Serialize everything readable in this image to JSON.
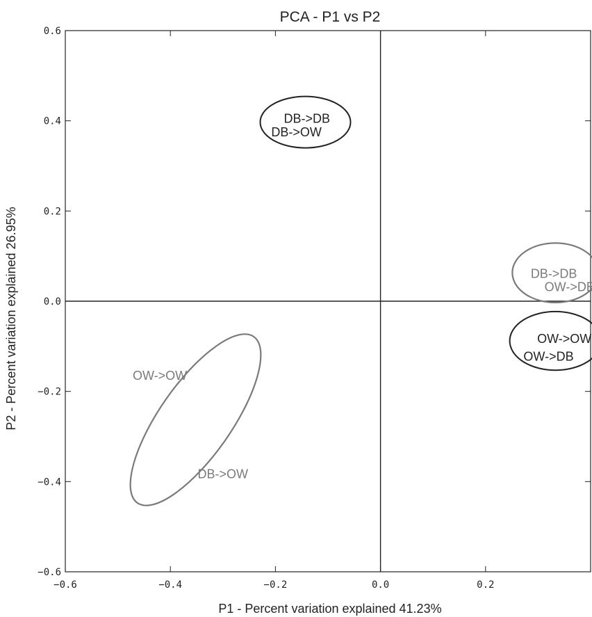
{
  "chart_data": {
    "type": "scatter",
    "title": "PCA - P1 vs P2",
    "xlabel": "P1 - Percent variation explained 41.23%",
    "ylabel": "P2 - Percent variation explained 26.95%",
    "xlim": [
      -0.6,
      0.4
    ],
    "ylim": [
      -0.6,
      0.6
    ],
    "xticks": [
      -0.6,
      -0.4,
      -0.2,
      0.0,
      0.2
    ],
    "xtick_labels": [
      "−0.6",
      "−0.4",
      "−0.2",
      "0.0",
      "0.2"
    ],
    "yticks": [
      0.6,
      0.4,
      0.2,
      0.0,
      -0.2,
      -0.4,
      -0.6
    ],
    "ytick_labels": [
      "0.6",
      "0.4",
      "0.2",
      "0.0",
      "−0.2",
      "−0.4",
      "−0.6"
    ],
    "grid": false,
    "zero_lines": true,
    "colors": {
      "dark": "#222222",
      "gray": "#7a7a7a"
    },
    "points": [
      {
        "label": "DB->DB",
        "x": -0.14,
        "y": 0.405,
        "color": "dark"
      },
      {
        "label": "DB->OW",
        "x": -0.16,
        "y": 0.375,
        "color": "dark"
      },
      {
        "label": "DB->DB",
        "x": 0.33,
        "y": 0.061,
        "color": "gray"
      },
      {
        "label": "OW->DB",
        "x": 0.36,
        "y": 0.032,
        "color": "gray"
      },
      {
        "label": "OW->OW",
        "x": 0.35,
        "y": -0.083,
        "color": "dark"
      },
      {
        "label": "OW->DB",
        "x": 0.32,
        "y": -0.123,
        "color": "dark"
      },
      {
        "label": "OW->OW",
        "x": -0.42,
        "y": -0.165,
        "color": "gray"
      },
      {
        "label": "DB->OW",
        "x": -0.3,
        "y": -0.383,
        "color": "gray"
      }
    ],
    "ellipses": [
      {
        "cx": -0.143,
        "cy": 0.397,
        "rx": 0.086,
        "ry": 0.057,
        "angle": 0,
        "color": "dark"
      },
      {
        "cx": 0.333,
        "cy": 0.063,
        "rx": 0.082,
        "ry": 0.066,
        "angle": 0,
        "color": "gray"
      },
      {
        "cx": 0.333,
        "cy": -0.088,
        "rx": 0.087,
        "ry": 0.065,
        "angle": 0,
        "color": "dark"
      },
      {
        "cx": -0.352,
        "cy": -0.263,
        "rx": 0.193,
        "ry": 0.08,
        "angle": -55,
        "color": "gray"
      }
    ]
  }
}
